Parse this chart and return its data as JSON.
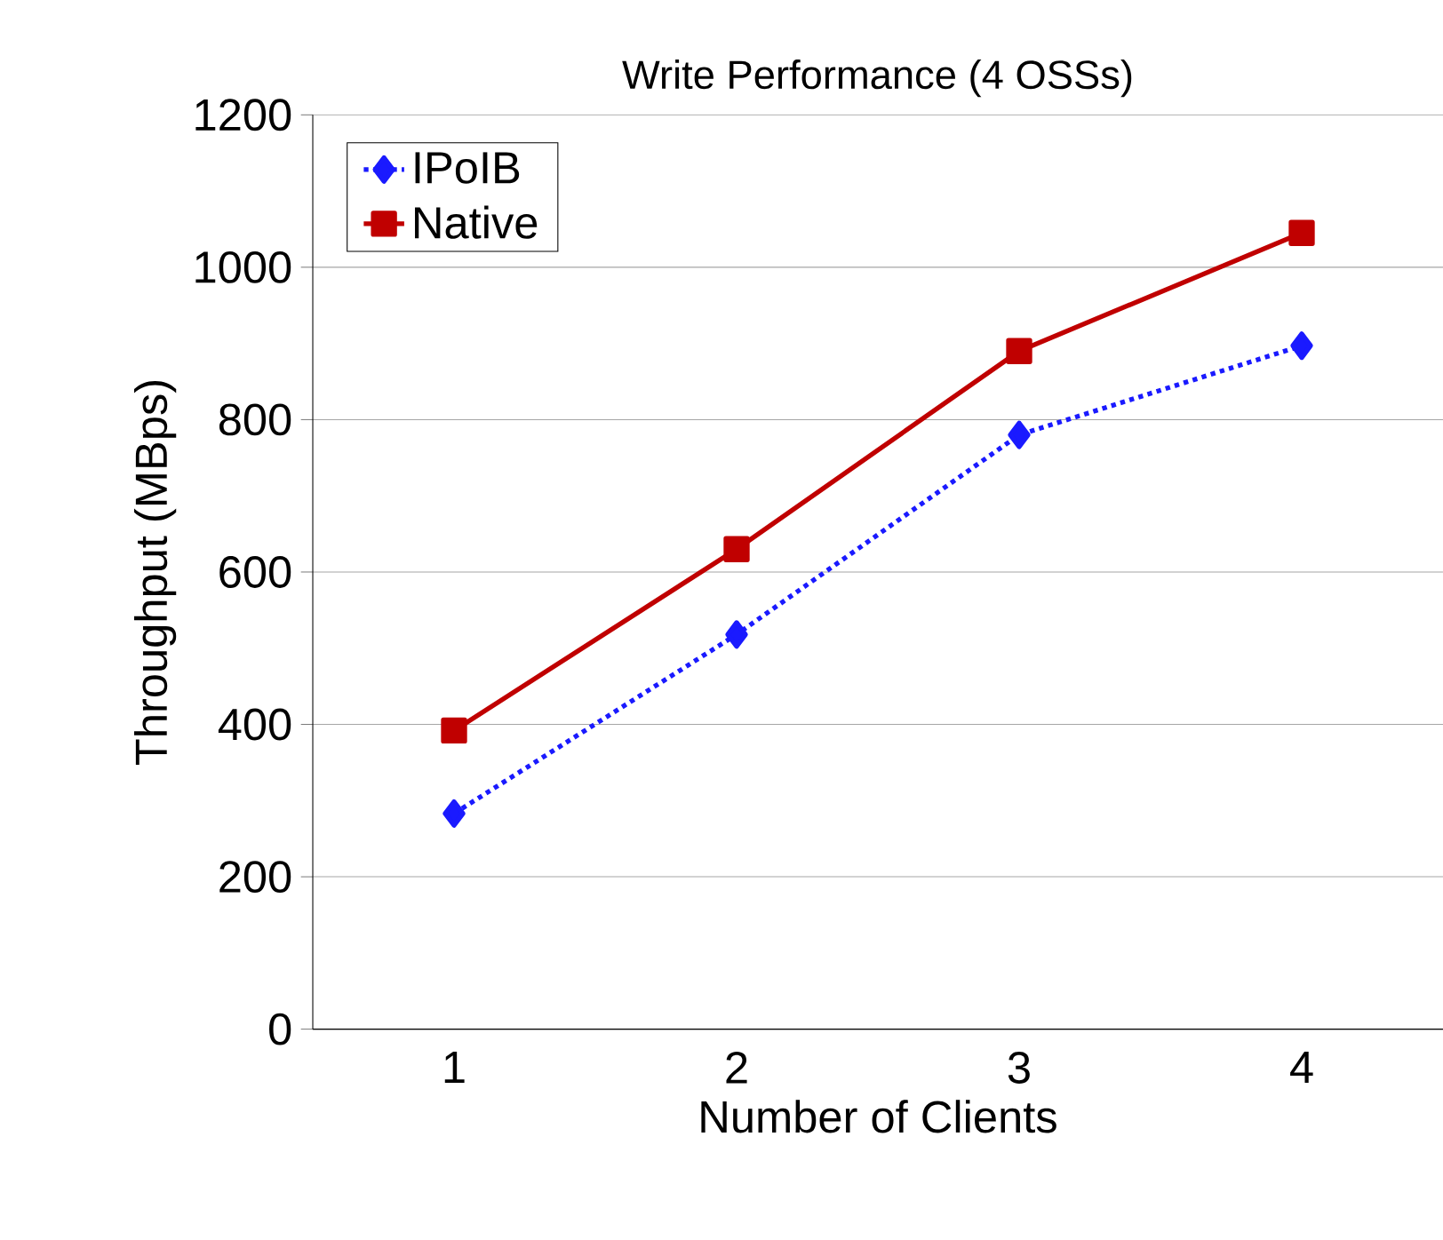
{
  "chart_data": {
    "type": "line",
    "title": "Write Performance (4 OSSs)",
    "xlabel": "Number of Clients",
    "ylabel": "Throughput (MBps)",
    "categories": [
      "1",
      "2",
      "3",
      "4"
    ],
    "series": [
      {
        "name": "IPoIB",
        "color": "#1a1aff",
        "values": [
          283,
          518,
          780,
          897
        ],
        "marker": "diamond",
        "line_style": "dotted"
      },
      {
        "name": "Native",
        "color": "#c00000",
        "values": [
          392,
          630,
          890,
          1045
        ],
        "marker": "square",
        "line_style": "solid"
      }
    ],
    "ylim": [
      0,
      1200
    ],
    "yticks": [
      0,
      200,
      400,
      600,
      800,
      1000,
      1200
    ],
    "grid": "y",
    "legend": "top left"
  }
}
